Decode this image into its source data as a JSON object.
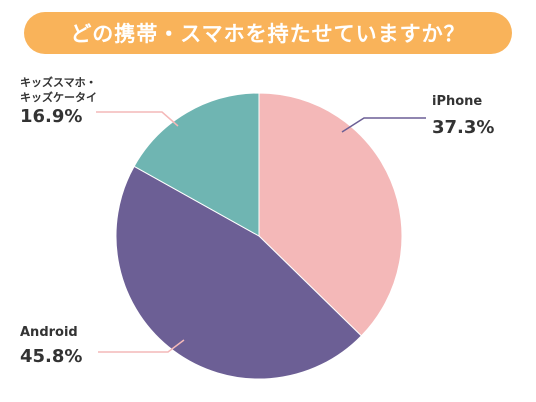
{
  "chart_data": {
    "type": "pie",
    "title": "どの携帯・スマホを持たせていますか？",
    "slices": [
      {
        "label": "iPhone",
        "label_lines": [
          "iPhone"
        ],
        "value": 37.3,
        "value_text": "37.3%",
        "color": "#f4b8b8"
      },
      {
        "label": "Android",
        "label_lines": [
          "Android"
        ],
        "value": 45.8,
        "value_text": "45.8%",
        "color": "#6c5f95"
      },
      {
        "label": "キッズスマホ・キッズケータイ",
        "label_lines": [
          "キッズスマホ・",
          "キッズケータイ"
        ],
        "value": 16.9,
        "value_text": "16.9%",
        "color": "#6fb5b2"
      }
    ],
    "legend": "none"
  },
  "colors": {
    "banner": "#f9b35a",
    "leader_line": "#6c5f95",
    "text": "#333333"
  }
}
